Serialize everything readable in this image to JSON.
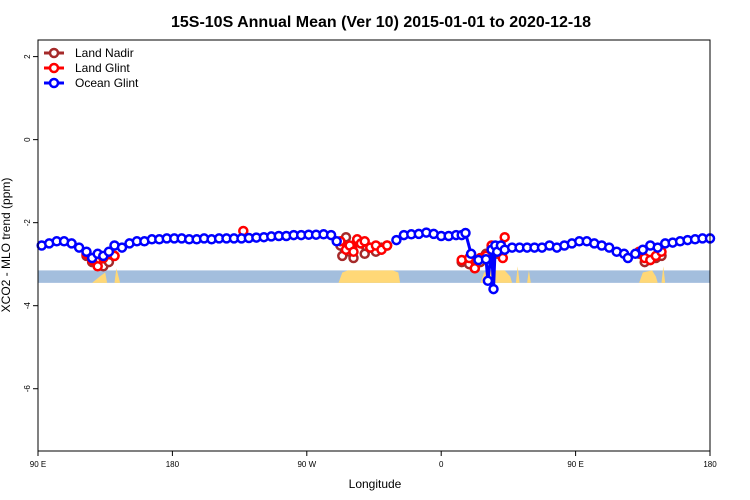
{
  "chart_data": {
    "type": "line",
    "title": "15S-10S Annual Mean (Ver 10)   2015-01-01 to 2020-12-18",
    "xlabel": "Longitude",
    "ylabel": "XCO2 - MLO trend (ppm)",
    "xlim": [
      90,
      450
    ],
    "ylim": [
      -7.5,
      2.4
    ],
    "x_ticks": [
      {
        "value": 90,
        "label": "90 E"
      },
      {
        "value": 162,
        "label": "180"
      },
      {
        "value": 234,
        "label": "90 W"
      },
      {
        "value": 306,
        "label": "0"
      },
      {
        "value": 378,
        "label": "90 E"
      },
      {
        "value": 450,
        "label": "180"
      }
    ],
    "y_ticks": [
      {
        "value": 2,
        "label": "2"
      },
      {
        "value": 0,
        "label": "0"
      },
      {
        "value": -2,
        "label": "-2"
      },
      {
        "value": -4,
        "label": "-4"
      },
      {
        "value": -6,
        "label": "-6"
      }
    ],
    "legend_position": "top-left",
    "background_band": {
      "y_top": -3.15,
      "y_bottom": -3.45,
      "color": "#a3bedd"
    },
    "land_mask": {
      "color": "#ffd877",
      "segments": [
        [
          [
            119,
            -3.45
          ],
          [
            123,
            -3.3
          ],
          [
            126,
            -3.2
          ],
          [
            127,
            -3.45
          ]
        ],
        [
          [
            131,
            -3.45
          ],
          [
            132,
            -3.1
          ],
          [
            134,
            -3.45
          ]
        ],
        [
          [
            251,
            -3.45
          ],
          [
            253,
            -3.2
          ],
          [
            256,
            -3.15
          ],
          [
            280,
            -3.15
          ],
          [
            283,
            -3.2
          ],
          [
            284,
            -3.45
          ]
        ],
        [
          [
            327,
            -3.45
          ],
          [
            329,
            -3.2
          ],
          [
            332,
            -3.15
          ],
          [
            340,
            -3.15
          ],
          [
            343,
            -3.3
          ],
          [
            344,
            -3.45
          ]
        ],
        [
          [
            346,
            -3.45
          ],
          [
            347,
            -3.05
          ],
          [
            348,
            -3.45
          ]
        ],
        [
          [
            352,
            -3.45
          ],
          [
            353,
            -3.15
          ],
          [
            354,
            -3.45
          ]
        ],
        [
          [
            412,
            -3.45
          ],
          [
            414,
            -3.2
          ],
          [
            419,
            -3.15
          ],
          [
            421,
            -3.3
          ],
          [
            422,
            -3.45
          ]
        ],
        [
          [
            424,
            -3.45
          ],
          [
            425,
            -3.05
          ],
          [
            426,
            -3.45
          ]
        ]
      ]
    },
    "series": [
      {
        "name": "Land Nadir",
        "color": "#a52a2a",
        "segments": [
          [
            [
              116,
              -2.8
            ],
            [
              119,
              -2.95
            ],
            [
              122,
              -2.9
            ],
            [
              125,
              -3.05
            ],
            [
              128,
              -2.95
            ],
            [
              131,
              -2.8
            ]
          ],
          [
            [
              252,
              -2.55
            ],
            [
              253,
              -2.8
            ],
            [
              255,
              -2.35
            ],
            [
              257,
              -2.7
            ],
            [
              259,
              -2.85
            ],
            [
              261,
              -2.45
            ],
            [
              263,
              -2.5
            ],
            [
              265,
              -2.75
            ],
            [
              268,
              -2.6
            ],
            [
              271,
              -2.7
            ],
            [
              274,
              -2.6
            ],
            [
              277,
              -2.55
            ]
          ],
          [
            [
              317,
              -2.95
            ],
            [
              321,
              -3.0
            ],
            [
              324,
              -3.1
            ],
            [
              327,
              -2.95
            ],
            [
              330,
              -2.75
            ],
            [
              333,
              -2.6
            ],
            [
              336,
              -2.75
            ],
            [
              339,
              -2.7
            ]
          ],
          [
            [
              412,
              -2.75
            ],
            [
              415,
              -2.95
            ],
            [
              418,
              -2.9
            ],
            [
              421,
              -2.85
            ],
            [
              424,
              -2.8
            ]
          ]
        ]
      },
      {
        "name": "Land Glint",
        "color": "#ff0000",
        "segments": [
          [
            [
              116,
              -2.75
            ],
            [
              119,
              -2.9
            ],
            [
              122,
              -3.05
            ],
            [
              125,
              -2.85
            ],
            [
              128,
              -2.75
            ],
            [
              131,
              -2.8
            ]
          ],
          [
            [
              200,
              -2.2
            ]
          ],
          [
            [
              252,
              -2.45
            ],
            [
              255,
              -2.65
            ],
            [
              257,
              -2.55
            ],
            [
              259,
              -2.7
            ],
            [
              261,
              -2.4
            ],
            [
              263,
              -2.5
            ],
            [
              265,
              -2.45
            ],
            [
              268,
              -2.6
            ],
            [
              271,
              -2.55
            ],
            [
              274,
              -2.65
            ],
            [
              277,
              -2.55
            ]
          ],
          [
            [
              317,
              -2.9
            ],
            [
              321,
              -2.85
            ],
            [
              324,
              -3.1
            ],
            [
              327,
              -2.85
            ],
            [
              330,
              -2.8
            ],
            [
              333,
              -2.55
            ],
            [
              336,
              -2.7
            ],
            [
              339,
              -2.85
            ],
            [
              340,
              -2.35
            ]
          ],
          [
            [
              412,
              -2.7
            ],
            [
              415,
              -2.85
            ],
            [
              418,
              -2.9
            ],
            [
              421,
              -2.8
            ],
            [
              424,
              -2.7
            ]
          ]
        ]
      },
      {
        "name": "Ocean Glint",
        "color": "#0000ff",
        "segments": [
          [
            [
              92,
              -2.55
            ],
            [
              96,
              -2.5
            ],
            [
              100,
              -2.45
            ],
            [
              104,
              -2.45
            ],
            [
              108,
              -2.5
            ],
            [
              112,
              -2.6
            ],
            [
              116,
              -2.7
            ],
            [
              119,
              -2.85
            ],
            [
              122,
              -2.75
            ],
            [
              125,
              -2.8
            ],
            [
              128,
              -2.7
            ],
            [
              131,
              -2.55
            ],
            [
              135,
              -2.6
            ],
            [
              139,
              -2.5
            ],
            [
              143,
              -2.45
            ],
            [
              147,
              -2.45
            ],
            [
              151,
              -2.4
            ],
            [
              155,
              -2.4
            ],
            [
              159,
              -2.38
            ],
            [
              163,
              -2.38
            ],
            [
              167,
              -2.38
            ],
            [
              171,
              -2.4
            ],
            [
              175,
              -2.4
            ],
            [
              179,
              -2.38
            ],
            [
              183,
              -2.4
            ],
            [
              187,
              -2.38
            ],
            [
              191,
              -2.38
            ],
            [
              195,
              -2.38
            ],
            [
              199,
              -2.38
            ],
            [
              203,
              -2.37
            ],
            [
              207,
              -2.36
            ],
            [
              211,
              -2.35
            ],
            [
              215,
              -2.33
            ],
            [
              219,
              -2.32
            ],
            [
              223,
              -2.32
            ],
            [
              227,
              -2.3
            ],
            [
              231,
              -2.3
            ],
            [
              235,
              -2.29
            ],
            [
              239,
              -2.29
            ],
            [
              243,
              -2.28
            ],
            [
              247,
              -2.3
            ],
            [
              250,
              -2.45
            ]
          ],
          [
            [
              282,
              -2.42
            ],
            [
              286,
              -2.3
            ],
            [
              290,
              -2.28
            ],
            [
              294,
              -2.27
            ],
            [
              298,
              -2.24
            ],
            [
              302,
              -2.27
            ],
            [
              306,
              -2.32
            ],
            [
              310,
              -2.32
            ],
            [
              314,
              -2.3
            ],
            [
              317,
              -2.3
            ],
            [
              319,
              -2.25
            ],
            [
              322,
              -2.75
            ],
            [
              326,
              -2.9
            ],
            [
              330,
              -2.88
            ],
            [
              331,
              -3.4
            ],
            [
              333,
              -2.65
            ],
            [
              334,
              -3.6
            ],
            [
              335,
              -2.55
            ],
            [
              336,
              -2.7
            ],
            [
              338,
              -2.55
            ],
            [
              340,
              -2.65
            ],
            [
              344,
              -2.6
            ],
            [
              348,
              -2.6
            ],
            [
              352,
              -2.6
            ],
            [
              356,
              -2.6
            ],
            [
              360,
              -2.6
            ],
            [
              364,
              -2.55
            ],
            [
              368,
              -2.6
            ],
            [
              372,
              -2.55
            ],
            [
              376,
              -2.5
            ],
            [
              380,
              -2.45
            ],
            [
              384,
              -2.45
            ],
            [
              388,
              -2.5
            ],
            [
              392,
              -2.55
            ],
            [
              396,
              -2.6
            ],
            [
              400,
              -2.7
            ],
            [
              404,
              -2.75
            ],
            [
              406,
              -2.85
            ],
            [
              410,
              -2.75
            ],
            [
              414,
              -2.65
            ],
            [
              418,
              -2.55
            ],
            [
              422,
              -2.6
            ],
            [
              426,
              -2.5
            ],
            [
              430,
              -2.48
            ],
            [
              434,
              -2.45
            ],
            [
              438,
              -2.42
            ],
            [
              442,
              -2.4
            ],
            [
              446,
              -2.38
            ],
            [
              450,
              -2.38
            ]
          ]
        ]
      }
    ]
  }
}
